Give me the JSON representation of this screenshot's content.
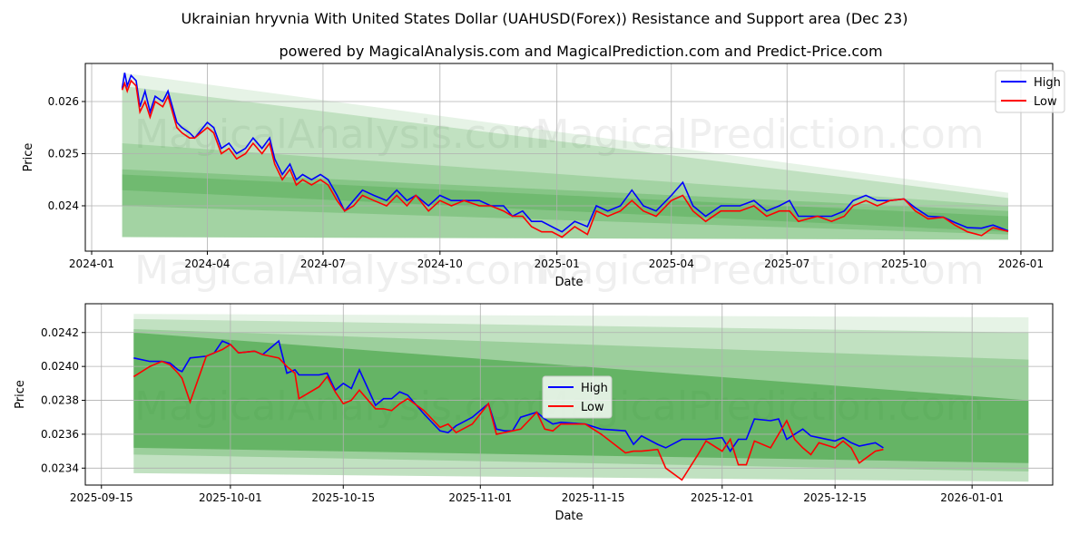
{
  "title": "Ukrainian hryvnia With United States Dollar (UAHUSD(Forex)) Resistance and Support area (Dec 23)",
  "subtitle": "powered by MagicalAnalysis.com and MagicalPrediction.com and Predict-Price.com",
  "watermarks": [
    "MagicalAnalysis.com",
    "MagicalPrediction.com"
  ],
  "colors": {
    "high": "#0000ff",
    "low": "#ff0000",
    "band": "#2e9a2e"
  },
  "chart_data": [
    {
      "type": "line",
      "xlabel": "Date",
      "ylabel": "Price",
      "xlim": [
        "2023-12-27",
        "2026-01-26"
      ],
      "ylim": [
        0.02313,
        0.02673
      ],
      "yticks": [
        "0.024",
        "0.025",
        "0.026"
      ],
      "ytick_values": [
        0.024,
        0.025,
        0.026
      ],
      "xticks": [
        "2024-01",
        "2024-04",
        "2024-07",
        "2024-10",
        "2025-01",
        "2025-04",
        "2025-07",
        "2025-10",
        "2026-01"
      ],
      "xtick_dates": [
        "2024-01-01",
        "2024-04-01",
        "2024-07-01",
        "2024-10-01",
        "2025-01-01",
        "2025-04-01",
        "2025-07-01",
        "2025-10-01",
        "2026-01-01"
      ],
      "grid": true,
      "legend": {
        "position": "top-right",
        "entries": [
          "High",
          "Low"
        ]
      },
      "bands": {
        "start": "2024-01-25",
        "end": "2025-12-22",
        "items": [
          {
            "upper": [
              0.02655,
              0.02425
            ],
            "lower": [
              0.0234,
              0.02335
            ],
            "opacity": 0.12
          },
          {
            "upper": [
              0.0263,
              0.02415
            ],
            "lower": [
              0.0234,
              0.02335
            ],
            "opacity": 0.2
          },
          {
            "upper": [
              0.0252,
              0.024
            ],
            "lower": [
              0.0234,
              0.02335
            ],
            "opacity": 0.2
          },
          {
            "upper": [
              0.0247,
              0.0239
            ],
            "lower": [
              0.024,
              0.02345
            ],
            "opacity": 0.25
          },
          {
            "upper": [
              0.0246,
              0.0238
            ],
            "lower": [
              0.0243,
              0.0235
            ],
            "opacity": 0.25
          }
        ]
      },
      "x": [
        "2024-01-25",
        "2024-01-27",
        "2024-01-29",
        "2024-02-01",
        "2024-02-05",
        "2024-02-08",
        "2024-02-12",
        "2024-02-16",
        "2024-02-20",
        "2024-02-26",
        "2024-03-01",
        "2024-03-08",
        "2024-03-12",
        "2024-03-18",
        "2024-03-22",
        "2024-04-01",
        "2024-04-06",
        "2024-04-12",
        "2024-04-18",
        "2024-04-24",
        "2024-05-01",
        "2024-05-07",
        "2024-05-14",
        "2024-05-20",
        "2024-05-24",
        "2024-05-30",
        "2024-06-05",
        "2024-06-10",
        "2024-06-15",
        "2024-06-22",
        "2024-06-29",
        "2024-07-05",
        "2024-07-12",
        "2024-07-18",
        "2024-07-25",
        "2024-08-01",
        "2024-08-10",
        "2024-08-20",
        "2024-08-28",
        "2024-09-05",
        "2024-09-12",
        "2024-09-22",
        "2024-10-01",
        "2024-10-10",
        "2024-10-20",
        "2024-11-01",
        "2024-11-10",
        "2024-11-20",
        "2024-11-27",
        "2024-12-05",
        "2024-12-12",
        "2024-12-20",
        "2024-12-28",
        "2025-01-05",
        "2025-01-15",
        "2025-01-25",
        "2025-02-01",
        "2025-02-10",
        "2025-02-20",
        "2025-03-01",
        "2025-03-10",
        "2025-03-20",
        "2025-04-01",
        "2025-04-10",
        "2025-04-18",
        "2025-04-28",
        "2025-05-10",
        "2025-05-25",
        "2025-06-05",
        "2025-06-15",
        "2025-06-25",
        "2025-07-03",
        "2025-07-10",
        "2025-07-25",
        "2025-08-05",
        "2025-08-15",
        "2025-08-22",
        "2025-09-01",
        "2025-09-10",
        "2025-09-20",
        "2025-10-01",
        "2025-10-10",
        "2025-10-20",
        "2025-11-01",
        "2025-11-10",
        "2025-11-20",
        "2025-12-01",
        "2025-12-10",
        "2025-12-22"
      ],
      "series": [
        {
          "name": "High",
          "values": [
            0.02625,
            0.02655,
            0.0263,
            0.0265,
            0.0264,
            0.0259,
            0.0262,
            0.0258,
            0.0261,
            0.026,
            0.0262,
            0.0256,
            0.0255,
            0.0254,
            0.0253,
            0.0256,
            0.0255,
            0.0251,
            0.0252,
            0.025,
            0.0251,
            0.0253,
            0.0251,
            0.0253,
            0.0249,
            0.0246,
            0.0248,
            0.0245,
            0.0246,
            0.0245,
            0.0246,
            0.0245,
            0.0242,
            0.0239,
            0.0241,
            0.0243,
            0.0242,
            0.0241,
            0.0243,
            0.0241,
            0.0242,
            0.024,
            0.0242,
            0.0241,
            0.0241,
            0.0241,
            0.024,
            0.024,
            0.0238,
            0.0239,
            0.0237,
            0.0237,
            0.0236,
            0.0235,
            0.0237,
            0.0236,
            0.024,
            0.0239,
            0.024,
            0.0243,
            0.024,
            0.0239,
            0.0242,
            0.02445,
            0.024,
            0.0238,
            0.024,
            0.024,
            0.0241,
            0.0239,
            0.024,
            0.0241,
            0.0238,
            0.0238,
            0.0238,
            0.0239,
            0.0241,
            0.0242,
            0.0241,
            0.0241,
            0.02413,
            0.02396,
            0.0238,
            0.02378,
            0.02368,
            0.02358,
            0.02357,
            0.02363,
            0.02352
          ]
        },
        {
          "name": "Low",
          "values": [
            0.02622,
            0.02635,
            0.0262,
            0.0264,
            0.0263,
            0.0258,
            0.026,
            0.0257,
            0.026,
            0.0259,
            0.0261,
            0.0255,
            0.0254,
            0.0253,
            0.0253,
            0.0255,
            0.0254,
            0.025,
            0.0251,
            0.0249,
            0.025,
            0.0252,
            0.025,
            0.0252,
            0.0248,
            0.0245,
            0.0247,
            0.0244,
            0.0245,
            0.0244,
            0.0245,
            0.0244,
            0.0241,
            0.0239,
            0.024,
            0.0242,
            0.0241,
            0.024,
            0.0242,
            0.024,
            0.0242,
            0.0239,
            0.0241,
            0.024,
            0.0241,
            0.024,
            0.024,
            0.0239,
            0.0238,
            0.0238,
            0.0236,
            0.0235,
            0.0235,
            0.0234,
            0.0236,
            0.02345,
            0.0239,
            0.0238,
            0.0239,
            0.0241,
            0.0239,
            0.0238,
            0.0241,
            0.0242,
            0.0239,
            0.0237,
            0.0239,
            0.0239,
            0.024,
            0.0238,
            0.0239,
            0.0239,
            0.0237,
            0.0238,
            0.0237,
            0.0238,
            0.024,
            0.0241,
            0.024,
            0.0241,
            0.02413,
            0.0239,
            0.02375,
            0.02378,
            0.02363,
            0.0235,
            0.02343,
            0.02358,
            0.02351
          ]
        }
      ]
    },
    {
      "type": "line",
      "xlabel": "Date",
      "ylabel": "Price",
      "xlim": [
        "2025-09-13",
        "2026-01-11"
      ],
      "ylim": [
        0.0233,
        0.02437
      ],
      "yticks": [
        "0.0234",
        "0.0236",
        "0.0238",
        "0.0240",
        "0.0242"
      ],
      "ytick_values": [
        0.0234,
        0.0236,
        0.0238,
        0.024,
        0.0242
      ],
      "xticks": [
        "2025-09-15",
        "2025-10-01",
        "2025-10-15",
        "2025-11-01",
        "2025-11-15",
        "2025-12-01",
        "2025-12-15",
        "2026-01-01"
      ],
      "xtick_dates": [
        "2025-09-15",
        "2025-10-01",
        "2025-10-15",
        "2025-11-01",
        "2025-11-15",
        "2025-12-01",
        "2025-12-15",
        "2026-01-01"
      ],
      "grid": true,
      "legend": {
        "position": "center",
        "entries": [
          "High",
          "Low"
        ]
      },
      "bands": {
        "start": "2025-09-19",
        "end": "2026-01-08",
        "items": [
          {
            "upper": [
              0.02431,
              0.02429
            ],
            "lower": [
              0.02337,
              0.02332
            ],
            "opacity": 0.12
          },
          {
            "upper": [
              0.02428,
              0.0242
            ],
            "lower": [
              0.02337,
              0.02332
            ],
            "opacity": 0.2
          },
          {
            "upper": [
              0.02422,
              0.02404
            ],
            "lower": [
              0.02348,
              0.02338
            ],
            "opacity": 0.25
          },
          {
            "upper": [
              0.0242,
              0.0238
            ],
            "lower": [
              0.02352,
              0.02343
            ],
            "opacity": 0.5
          }
        ]
      },
      "x_days_from": "2025-09-15",
      "x": [
        4,
        6,
        7.5,
        8.5,
        9.5,
        10,
        11,
        13,
        14,
        15,
        16,
        17,
        19,
        20,
        22,
        23,
        24,
        24.5,
        27,
        28,
        29,
        30,
        31,
        32,
        34,
        35,
        36,
        37,
        38,
        40,
        42,
        43,
        44,
        46,
        48,
        49,
        50,
        51,
        52,
        54,
        55,
        56,
        57,
        60,
        62,
        65,
        66,
        67,
        69,
        70,
        72,
        74,
        75,
        77,
        78,
        79,
        80,
        81,
        83,
        84,
        85,
        86,
        87,
        88,
        89,
        91,
        92,
        93,
        94,
        96,
        97
      ],
      "series": [
        {
          "name": "High",
          "values": [
            0.02405,
            0.02403,
            0.02403,
            0.02402,
            0.02398,
            0.02397,
            0.02405,
            0.02406,
            0.02408,
            0.02415,
            0.02413,
            0.02408,
            0.02409,
            0.02407,
            0.02415,
            0.02396,
            0.02398,
            0.02395,
            0.02395,
            0.02396,
            0.02386,
            0.0239,
            0.02387,
            0.02398,
            0.02377,
            0.02381,
            0.02381,
            0.02385,
            0.02383,
            0.02372,
            0.02362,
            0.02361,
            0.02365,
            0.0237,
            0.02378,
            0.02363,
            0.02362,
            0.02362,
            0.0237,
            0.02373,
            0.02369,
            0.02366,
            0.02367,
            0.02366,
            0.02363,
            0.02362,
            0.02354,
            0.02359,
            0.02354,
            0.02352,
            0.02357,
            0.02357,
            0.02357,
            0.02358,
            0.0235,
            0.02357,
            0.02357,
            0.02369,
            0.02368,
            0.02369,
            0.02357,
            0.0236,
            0.02363,
            0.02359,
            0.02358,
            0.02356,
            0.02358,
            0.02355,
            0.02353,
            0.02355,
            0.02352
          ]
        },
        {
          "name": "Low",
          "values": [
            0.02394,
            0.024,
            0.02403,
            0.02401,
            0.02396,
            0.02393,
            0.02379,
            0.02406,
            0.02408,
            0.0241,
            0.02413,
            0.02408,
            0.02409,
            0.02407,
            0.02405,
            0.024,
            0.02396,
            0.02381,
            0.02388,
            0.02394,
            0.02385,
            0.02378,
            0.0238,
            0.02386,
            0.02375,
            0.02375,
            0.02374,
            0.02378,
            0.02381,
            0.02374,
            0.02364,
            0.02366,
            0.02361,
            0.02366,
            0.02378,
            0.0236,
            0.02361,
            0.02362,
            0.02363,
            0.02373,
            0.02363,
            0.02362,
            0.02366,
            0.02366,
            0.0236,
            0.02349,
            0.0235,
            0.0235,
            0.02351,
            0.0234,
            0.02333,
            0.02348,
            0.02356,
            0.0235,
            0.02357,
            0.02342,
            0.02342,
            0.02356,
            0.02352,
            0.0236,
            0.02368,
            0.02357,
            0.02352,
            0.02348,
            0.02355,
            0.02352,
            0.02356,
            0.02352,
            0.02343,
            0.0235,
            0.02351
          ]
        }
      ]
    }
  ]
}
